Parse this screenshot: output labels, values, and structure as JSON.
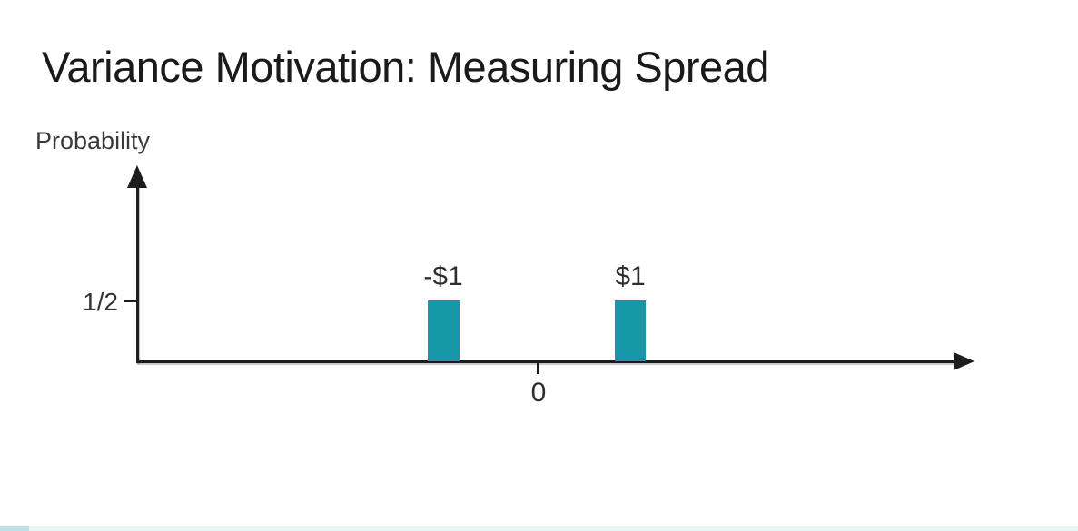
{
  "slide": {
    "title": "Variance Motivation: Measuring Spread"
  },
  "chart": {
    "y_axis_label": "Probability",
    "y_tick_label": "1/2",
    "x_tick_label": "0",
    "bars": [
      {
        "label": "-$1",
        "value": 0.5
      },
      {
        "label": "$1",
        "value": 0.5
      }
    ]
  },
  "colors": {
    "bar_fill": "#1798A8",
    "axis": "#1D1D1D",
    "title_text": "#1A1A1A",
    "label_text": "#333333",
    "background": "#FFFFFF"
  },
  "chart_data": {
    "type": "bar",
    "title": "Variance Motivation: Measuring Spread",
    "xlabel": "",
    "ylabel": "Probability",
    "x": [
      -1,
      1
    ],
    "categories": [
      "-$1",
      "$1"
    ],
    "values": [
      0.5,
      0.5
    ],
    "y_ticks": [
      {
        "value": 0.5,
        "label": "1/2"
      }
    ],
    "x_ticks": [
      {
        "value": 0,
        "label": "0"
      }
    ],
    "ylim": [
      0,
      1
    ],
    "xlim_note": "x axis extends right with arrowhead, origin tick labeled 0",
    "grid": false,
    "legend": false,
    "bar_color": "#1798A8"
  }
}
